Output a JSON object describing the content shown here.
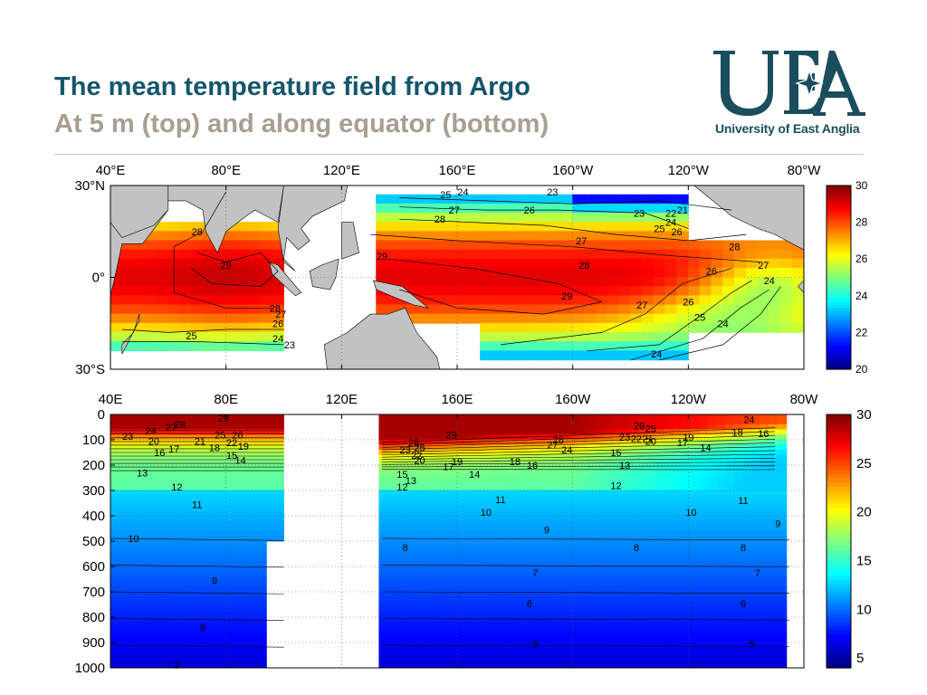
{
  "header": {
    "title": "The mean temperature field from Argo",
    "subtitle": "At 5 m (top) and along equator (bottom)"
  },
  "logo": {
    "mark": "UEA",
    "name": "University of East Anglia",
    "color": "#1b4e5c"
  },
  "chart_data": [
    {
      "type": "heatmap",
      "description": "Mean temperature at 5 m depth",
      "x_tick_labels": [
        "40°E",
        "80°E",
        "120°E",
        "160°E",
        "160°W",
        "120°W",
        "80°W"
      ],
      "y_tick_labels": [
        "30°N",
        "0°",
        "30°S"
      ],
      "xlim": [
        40,
        280
      ],
      "ylim": [
        -30,
        30
      ],
      "color_scale": {
        "min": 20,
        "max": 30,
        "ticks": [
          20,
          22,
          24,
          26,
          28,
          30
        ],
        "colormap": "jet"
      },
      "contour_levels": [
        23,
        24,
        25,
        26,
        27,
        28,
        29
      ],
      "contour_labels": [
        {
          "text": "28",
          "lon": 70,
          "lat": 15
        },
        {
          "text": "29",
          "lon": 80,
          "lat": 4
        },
        {
          "text": "28",
          "lon": 97,
          "lat": -10
        },
        {
          "text": "27",
          "lon": 99,
          "lat": -12
        },
        {
          "text": "26",
          "lon": 98,
          "lat": -15
        },
        {
          "text": "25",
          "lon": 68,
          "lat": -19
        },
        {
          "text": "24",
          "lon": 98,
          "lat": -20
        },
        {
          "text": "23",
          "lon": 102,
          "lat": -22
        },
        {
          "text": "24",
          "lon": 162,
          "lat": 28
        },
        {
          "text": "25",
          "lon": 156,
          "lat": 27
        },
        {
          "text": "23",
          "lon": 193,
          "lat": 28
        },
        {
          "text": "27",
          "lon": 159,
          "lat": 22
        },
        {
          "text": "28",
          "lon": 154,
          "lat": 19
        },
        {
          "text": "26",
          "lon": 185,
          "lat": 22
        },
        {
          "text": "29",
          "lon": 134,
          "lat": 7
        },
        {
          "text": "27",
          "lon": 203,
          "lat": 12
        },
        {
          "text": "23",
          "lon": 223,
          "lat": 21
        },
        {
          "text": "22",
          "lon": 234,
          "lat": 21
        },
        {
          "text": "21",
          "lon": 238,
          "lat": 22
        },
        {
          "text": "24",
          "lon": 234,
          "lat": 18
        },
        {
          "text": "25",
          "lon": 230,
          "lat": 16
        },
        {
          "text": "26",
          "lon": 236,
          "lat": 15
        },
        {
          "text": "28",
          "lon": 204,
          "lat": 4
        },
        {
          "text": "28",
          "lon": 256,
          "lat": 10
        },
        {
          "text": "26",
          "lon": 248,
          "lat": 2
        },
        {
          "text": "27",
          "lon": 266,
          "lat": 4
        },
        {
          "text": "24",
          "lon": 268,
          "lat": -1
        },
        {
          "text": "29",
          "lon": 198,
          "lat": -6
        },
        {
          "text": "27",
          "lon": 224,
          "lat": -9
        },
        {
          "text": "26",
          "lon": 240,
          "lat": -8
        },
        {
          "text": "25",
          "lon": 244,
          "lat": -13
        },
        {
          "text": "24",
          "lon": 252,
          "lat": -15
        },
        {
          "text": "24",
          "lon": 229,
          "lat": -25
        }
      ]
    },
    {
      "type": "heatmap",
      "description": "Mean temperature along the equator vs depth",
      "x_tick_labels": [
        "40E",
        "80E",
        "120E",
        "160E",
        "160W",
        "120W",
        "80W"
      ],
      "y_ticks": [
        0,
        100,
        200,
        300,
        400,
        500,
        600,
        700,
        800,
        900,
        1000
      ],
      "xlim": [
        40,
        280
      ],
      "ylim": [
        1000,
        0
      ],
      "color_scale": {
        "min": 4,
        "max": 30,
        "ticks": [
          5,
          10,
          15,
          20,
          25,
          30
        ],
        "colormap": "jet"
      },
      "contour_levels": [
        5,
        6,
        7,
        8,
        9,
        10,
        11,
        12,
        13,
        14,
        15,
        16,
        17,
        18,
        19,
        20,
        21,
        22,
        23,
        24,
        25,
        26,
        27,
        28,
        29
      ],
      "contour_labels": [
        {
          "text": "29",
          "lon": 79,
          "depth": 15
        },
        {
          "text": "28",
          "lon": 64,
          "depth": 40
        },
        {
          "text": "27",
          "lon": 61,
          "depth": 50
        },
        {
          "text": "24",
          "lon": 54,
          "depth": 65
        },
        {
          "text": "23",
          "lon": 46,
          "depth": 85
        },
        {
          "text": "20",
          "lon": 55,
          "depth": 105
        },
        {
          "text": "17",
          "lon": 62,
          "depth": 135
        },
        {
          "text": "16",
          "lon": 57,
          "depth": 150
        },
        {
          "text": "21",
          "lon": 71,
          "depth": 105
        },
        {
          "text": "18",
          "lon": 76,
          "depth": 130
        },
        {
          "text": "25",
          "lon": 78,
          "depth": 80
        },
        {
          "text": "26",
          "lon": 84,
          "depth": 80
        },
        {
          "text": "22",
          "lon": 82,
          "depth": 110
        },
        {
          "text": "19",
          "lon": 86,
          "depth": 125
        },
        {
          "text": "15",
          "lon": 82,
          "depth": 160
        },
        {
          "text": "14",
          "lon": 85,
          "depth": 180
        },
        {
          "text": "13",
          "lon": 51,
          "depth": 230
        },
        {
          "text": "12",
          "lon": 63,
          "depth": 285
        },
        {
          "text": "11",
          "lon": 70,
          "depth": 355
        },
        {
          "text": "10",
          "lon": 48,
          "depth": 490
        },
        {
          "text": "9",
          "lon": 76,
          "depth": 655
        },
        {
          "text": "8",
          "lon": 72,
          "depth": 840
        },
        {
          "text": "7",
          "lon": 63,
          "depth": 990
        },
        {
          "text": "29",
          "lon": 158,
          "depth": 80
        },
        {
          "text": "28",
          "lon": 145,
          "depth": 110
        },
        {
          "text": "25",
          "lon": 147,
          "depth": 130
        },
        {
          "text": "23",
          "lon": 142,
          "depth": 140
        },
        {
          "text": "22",
          "lon": 146,
          "depth": 160
        },
        {
          "text": "20",
          "lon": 147,
          "depth": 180
        },
        {
          "text": "19",
          "lon": 160,
          "depth": 185
        },
        {
          "text": "17",
          "lon": 157,
          "depth": 205
        },
        {
          "text": "15",
          "lon": 141,
          "depth": 235
        },
        {
          "text": "13",
          "lon": 144,
          "depth": 260
        },
        {
          "text": "12",
          "lon": 141,
          "depth": 285
        },
        {
          "text": "14",
          "lon": 166,
          "depth": 235
        },
        {
          "text": "18",
          "lon": 180,
          "depth": 185
        },
        {
          "text": "16",
          "lon": 186,
          "depth": 200
        },
        {
          "text": "28",
          "lon": 195,
          "depth": 100
        },
        {
          "text": "27",
          "lon": 193,
          "depth": 120
        },
        {
          "text": "24",
          "lon": 198,
          "depth": 140
        },
        {
          "text": "11",
          "lon": 175,
          "depth": 335
        },
        {
          "text": "10",
          "lon": 170,
          "depth": 385
        },
        {
          "text": "9",
          "lon": 191,
          "depth": 455
        },
        {
          "text": "8",
          "lon": 142,
          "depth": 525
        },
        {
          "text": "7",
          "lon": 187,
          "depth": 625
        },
        {
          "text": "6",
          "lon": 185,
          "depth": 745
        },
        {
          "text": "5",
          "lon": 187,
          "depth": 905
        },
        {
          "text": "26",
          "lon": 223,
          "depth": 45
        },
        {
          "text": "25",
          "lon": 227,
          "depth": 55
        },
        {
          "text": "23",
          "lon": 218,
          "depth": 90
        },
        {
          "text": "22",
          "lon": 222,
          "depth": 95
        },
        {
          "text": "21",
          "lon": 226,
          "depth": 95
        },
        {
          "text": "20",
          "lon": 227,
          "depth": 105
        },
        {
          "text": "19",
          "lon": 240,
          "depth": 90
        },
        {
          "text": "17",
          "lon": 238,
          "depth": 110
        },
        {
          "text": "15",
          "lon": 215,
          "depth": 150
        },
        {
          "text": "14",
          "lon": 246,
          "depth": 130
        },
        {
          "text": "13",
          "lon": 218,
          "depth": 200
        },
        {
          "text": "12",
          "lon": 215,
          "depth": 280
        },
        {
          "text": "18",
          "lon": 257,
          "depth": 70
        },
        {
          "text": "16",
          "lon": 266,
          "depth": 75
        },
        {
          "text": "24",
          "lon": 261,
          "depth": 20
        },
        {
          "text": "11",
          "lon": 259,
          "depth": 340
        },
        {
          "text": "10",
          "lon": 241,
          "depth": 385
        },
        {
          "text": "9",
          "lon": 271,
          "depth": 430
        },
        {
          "text": "8",
          "lon": 222,
          "depth": 525
        },
        {
          "text": "8",
          "lon": 259,
          "depth": 525
        },
        {
          "text": "7",
          "lon": 264,
          "depth": 625
        },
        {
          "text": "6",
          "lon": 259,
          "depth": 745
        },
        {
          "text": "5",
          "lon": 262,
          "depth": 905
        }
      ]
    }
  ]
}
